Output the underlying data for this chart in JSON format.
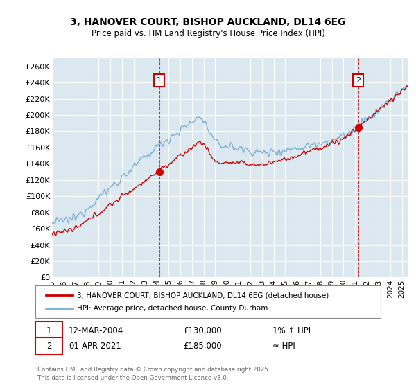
{
  "title": "3, HANOVER COURT, BISHOP AUCKLAND, DL14 6EG",
  "subtitle": "Price paid vs. HM Land Registry's House Price Index (HPI)",
  "ylabel_ticks": [
    "£0",
    "£20K",
    "£40K",
    "£60K",
    "£80K",
    "£100K",
    "£120K",
    "£140K",
    "£160K",
    "£180K",
    "£200K",
    "£220K",
    "£240K",
    "£260K"
  ],
  "ytick_values": [
    0,
    20000,
    40000,
    60000,
    80000,
    100000,
    120000,
    140000,
    160000,
    180000,
    200000,
    220000,
    240000,
    260000
  ],
  "ylim": [
    0,
    270000
  ],
  "xlim_start": 1995.0,
  "xlim_end": 2025.5,
  "sale1": {
    "date_label": "12-MAR-2004",
    "price": 130000,
    "year": 2004.2,
    "label": "1"
  },
  "sale2": {
    "date_label": "01-APR-2021",
    "price": 185000,
    "year": 2021.25,
    "label": "2"
  },
  "legend1": "3, HANOVER COURT, BISHOP AUCKLAND, DL14 6EG (detached house)",
  "legend2": "HPI: Average price, detached house, County Durham",
  "footnote": "Contains HM Land Registry data © Crown copyright and database right 2025.\nThis data is licensed under the Open Government Licence v3.0.",
  "line_color_red": "#cc0000",
  "line_color_blue": "#7bafd4",
  "bg_color": "#dce8f0",
  "grid_color": "#ffffff",
  "annotation_box_color": "#cc0000"
}
